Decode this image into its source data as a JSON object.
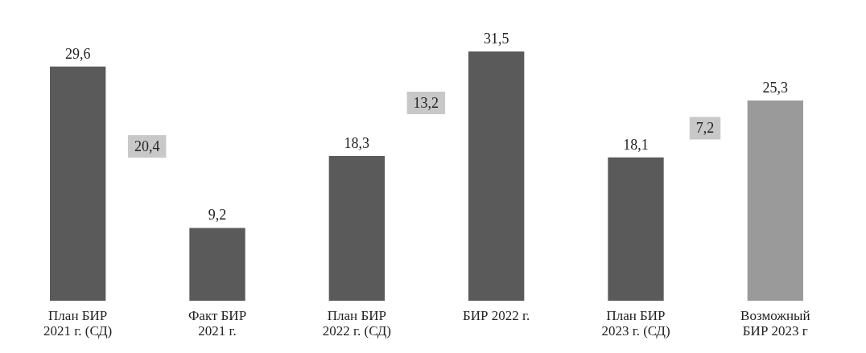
{
  "chart_data": {
    "type": "bar",
    "categories": [
      "План БИР\n2021 г. (СД)",
      "Факт БИР\n2021 г.",
      "План БИР\n2022 г. (СД)",
      "БИР 2022 г.",
      "План БИР\n2023 г. (СД)",
      "Возможный\nБИР 2023 г"
    ],
    "values": [
      29.6,
      9.2,
      18.3,
      31.5,
      18.1,
      25.3
    ],
    "colors": [
      "#5a5a5a",
      "#5a5a5a",
      "#5a5a5a",
      "#5a5a5a",
      "#5a5a5a",
      "#9a9a9a"
    ],
    "value_labels": [
      "29,6",
      "9,2",
      "18,3",
      "31,5",
      "18,1",
      "25,3"
    ],
    "annotations": [
      "20,4",
      "13,2",
      "7,2"
    ]
  }
}
